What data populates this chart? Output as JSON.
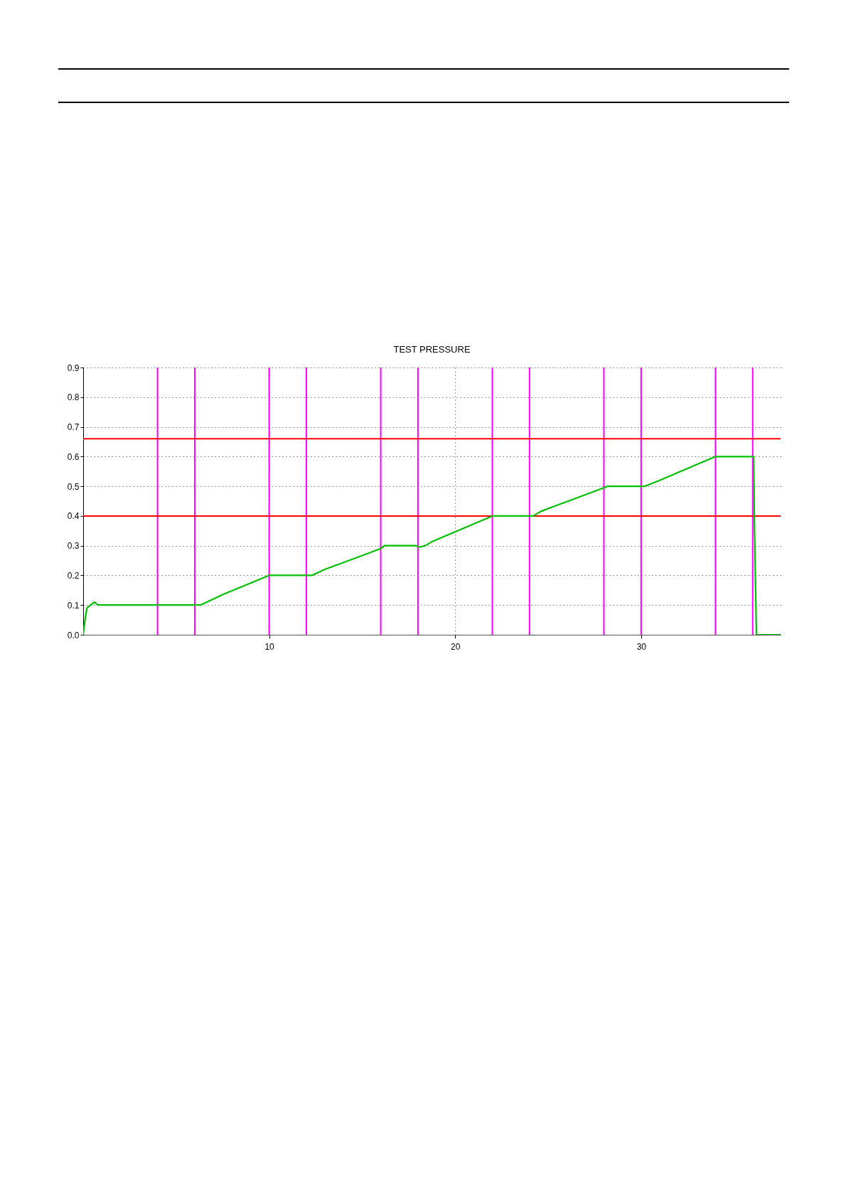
{
  "chart_data": {
    "type": "line",
    "title": "TEST PRESSURE",
    "xlim": [
      0,
      37.5
    ],
    "xticks": [
      10,
      20,
      30
    ],
    "ylim": [
      0,
      0.9
    ],
    "yticks": [
      {
        "value": 0,
        "label": "0.0"
      },
      {
        "value": 0.1,
        "label": "0.1"
      },
      {
        "value": 0.2,
        "label": "0.2"
      },
      {
        "value": 0.3,
        "label": "0.3"
      },
      {
        "value": 0.4,
        "label": "0.4"
      },
      {
        "value": 0.5,
        "label": "0.5"
      },
      {
        "value": 0.6,
        "label": "0.6"
      },
      {
        "value": 0.7,
        "label": "0.7"
      },
      {
        "value": 0.8,
        "label": "0.8"
      },
      {
        "value": 0.9,
        "label": "0.9"
      }
    ],
    "grid": true,
    "marker": "none",
    "line_style": "solid",
    "series": [
      {
        "color": "#00c000",
        "x": [
          0,
          0.1,
          0.2,
          0.4,
          0.6,
          0.7,
          0.8,
          6,
          6.3,
          7,
          7.5,
          10,
          12,
          12.3,
          13,
          16,
          16.2,
          17.9,
          18.1,
          18.4,
          18.8,
          22,
          24.2,
          24.6,
          25,
          28,
          28.2,
          30.2,
          30.6,
          31,
          34,
          36.05,
          36.1,
          36.15,
          36.2,
          37.5
        ],
        "values": [
          0,
          0.05,
          0.09,
          0.1,
          0.11,
          0.105,
          0.1,
          0.1,
          0.1,
          0.12,
          0.135,
          0.2,
          0.2,
          0.2,
          0.22,
          0.29,
          0.3,
          0.3,
          0.295,
          0.3,
          0.315,
          0.4,
          0.4,
          0.415,
          0.425,
          0.495,
          0.5,
          0.5,
          0.51,
          0.52,
          0.6,
          0.6,
          0.35,
          0.18,
          0,
          0
        ]
      }
    ],
    "ref_lines": [
      {
        "axis": "y",
        "value": 0.66,
        "color": "#ff0000"
      },
      {
        "axis": "y",
        "value": 0.4,
        "color": "#ff0000"
      },
      {
        "axis": "x",
        "value": 4,
        "color": "#ff00ff"
      },
      {
        "axis": "x",
        "value": 6,
        "color": "#ff00ff"
      },
      {
        "axis": "x",
        "value": 10,
        "color": "#ff00ff"
      },
      {
        "axis": "x",
        "value": 12,
        "color": "#ff00ff"
      },
      {
        "axis": "x",
        "value": 16,
        "color": "#ff00ff"
      },
      {
        "axis": "x",
        "value": 18,
        "color": "#ff00ff"
      },
      {
        "axis": "x",
        "value": 22,
        "color": "#ff00ff"
      },
      {
        "axis": "x",
        "value": 24,
        "color": "#ff00ff"
      },
      {
        "axis": "x",
        "value": 28,
        "color": "#ff00ff"
      },
      {
        "axis": "x",
        "value": 30,
        "color": "#ff00ff"
      },
      {
        "axis": "x",
        "value": 34,
        "color": "#ff00ff"
      },
      {
        "axis": "x",
        "value": 36,
        "color": "#ff00ff"
      }
    ]
  }
}
